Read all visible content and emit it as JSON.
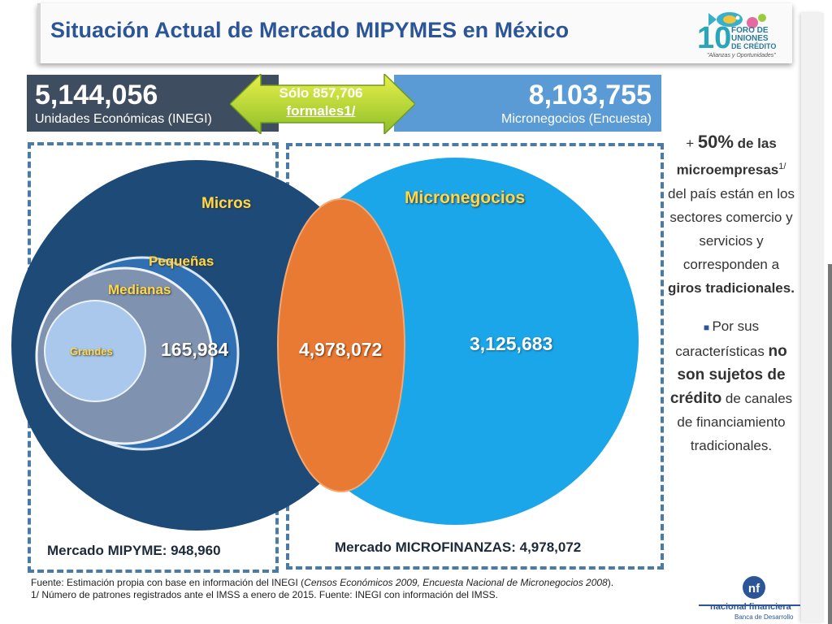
{
  "title": "Situación Actual de Mercado MIPYMES en México",
  "logo_top": {
    "number": "10",
    "line1": "FORO DE",
    "line2": "UNIONES",
    "line3": "DE CRÉDITO",
    "tagline": "\"Alianzas y Oportunidades\""
  },
  "left_box": {
    "value": "5,144,056",
    "label": "Unidades Económicas (INEGI)"
  },
  "right_box": {
    "value": "8,103,755",
    "label": "Micronegocios (Encuesta)"
  },
  "arrow": {
    "line1": "Sólo 857,706",
    "line2": "formales1/"
  },
  "venn": {
    "micros_label": "Micros",
    "micronegocios_label": "Micronegocios",
    "pequenas_label": "Pequeñas",
    "medianas_label": "Medianas",
    "grandes_label": "Grandes",
    "value_left": "165,984",
    "value_intersection": "4,978,072",
    "value_right": "3,125,683"
  },
  "market_left": "Mercado MIPYME: 948,960",
  "market_right": "Mercado MICROFINANZAS: 4,978,072",
  "side_text": {
    "p1_plus": "+ ",
    "p1_pct": "50%",
    "p1_rest_a": " de las ",
    "p1_bold": "microempresas",
    "p1_sup": "1/",
    "p1_rest_b": " del país están en los sectores comercio y servicios y corresponden a ",
    "p1_bold2": "giros tradicionales.",
    "p2_start": "Por sus características ",
    "p2_bold1": "no son sujetos de crédito",
    "p2_rest": " de canales de financiamiento tradicionales."
  },
  "footer": {
    "line1_a": "Fuente: Estimación propia con base en información del INEGI (",
    "line1_i": "Censos Económicos 2009, Encuesta Nacional de Micronegocios 2008",
    "line1_b": ").",
    "line2": "1/ Número de patrones registrados ante el IMSS a enero de 2015. Fuente: INEGI con información del IMSS."
  },
  "logo_bottom": {
    "name": "nacional financiera",
    "sub": "Banca de Desarrollo"
  },
  "colors": {
    "dark_navy": "#1e4a78",
    "light_blue": "#1aa6e8",
    "orange": "#e87a34",
    "medium_blue": "#2f6fb2",
    "gray_blue": "#7f93b1",
    "pale_blue": "#a9c8ec"
  }
}
